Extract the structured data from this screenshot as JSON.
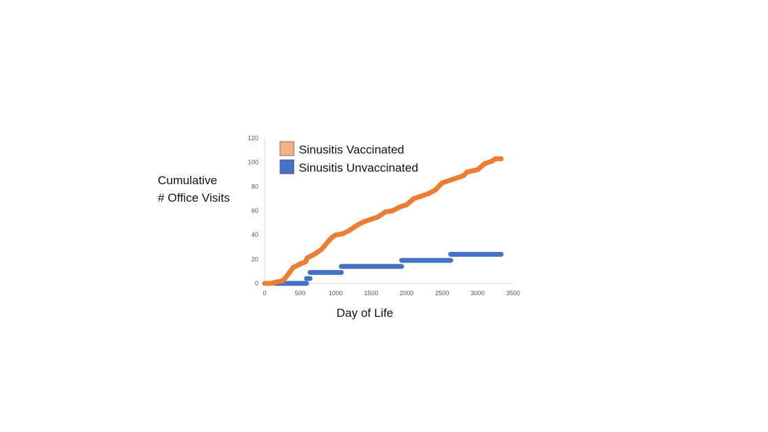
{
  "chart_data": {
    "type": "line",
    "title": "",
    "xlabel": "Day of Life",
    "ylabel_lines": [
      "Cumulative",
      "# Office Visits"
    ],
    "xlim": [
      0,
      3500
    ],
    "ylim": [
      0,
      120
    ],
    "xticks": [
      "0",
      "500",
      "1000",
      "1500",
      "2000",
      "2500",
      "3000",
      "3500"
    ],
    "yticks": [
      "0",
      "20",
      "40",
      "60",
      "80",
      "100",
      "120"
    ],
    "grid": false,
    "legend_position": "top-left",
    "series": [
      {
        "name": "Sinusitis Vaccinated",
        "color": "#ED7D31",
        "legend_color": "#F4B183",
        "style": "line",
        "points": [
          [
            0,
            0
          ],
          [
            100,
            0
          ],
          [
            150,
            1
          ],
          [
            250,
            2
          ],
          [
            300,
            5
          ],
          [
            350,
            9
          ],
          [
            400,
            13
          ],
          [
            500,
            16
          ],
          [
            580,
            18
          ],
          [
            600,
            21
          ],
          [
            700,
            24
          ],
          [
            800,
            28
          ],
          [
            900,
            35
          ],
          [
            950,
            38
          ],
          [
            1000,
            40
          ],
          [
            1100,
            41
          ],
          [
            1200,
            44
          ],
          [
            1300,
            48
          ],
          [
            1400,
            51
          ],
          [
            1500,
            53
          ],
          [
            1600,
            55
          ],
          [
            1700,
            59
          ],
          [
            1800,
            60
          ],
          [
            1900,
            63
          ],
          [
            2000,
            65
          ],
          [
            2100,
            70
          ],
          [
            2200,
            72
          ],
          [
            2300,
            74
          ],
          [
            2400,
            77
          ],
          [
            2500,
            83
          ],
          [
            2600,
            85
          ],
          [
            2700,
            87
          ],
          [
            2800,
            89
          ],
          [
            2850,
            92
          ],
          [
            3000,
            94
          ],
          [
            3100,
            99
          ],
          [
            3200,
            101
          ],
          [
            3250,
            103
          ],
          [
            3330,
            103
          ]
        ]
      },
      {
        "name": "Sinusitis Unvaccinated",
        "color": "#4472C4",
        "legend_color": "#4472C4",
        "style": "step",
        "segments": [
          [
            150,
            590,
            0
          ],
          [
            590,
            640,
            4
          ],
          [
            640,
            1080,
            9
          ],
          [
            1080,
            1930,
            14
          ],
          [
            1930,
            2620,
            19
          ],
          [
            2620,
            3330,
            24
          ]
        ]
      }
    ]
  }
}
